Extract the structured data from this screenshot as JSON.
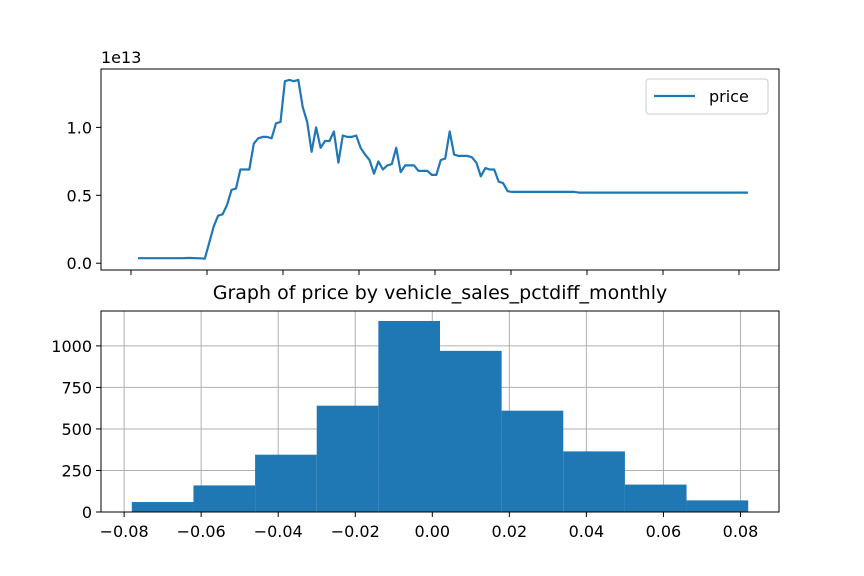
{
  "chart_data": [
    {
      "type": "line",
      "title": "",
      "xlabel": "",
      "ylabel": "",
      "scale_label": "1e13",
      "legend": {
        "entries": [
          "price"
        ],
        "placement": "upper right"
      },
      "x": [
        0,
        1,
        2,
        3,
        4,
        5,
        6,
        7,
        8,
        9,
        10,
        11,
        12,
        13,
        14,
        15,
        16,
        17,
        18,
        19,
        20,
        21,
        22,
        23,
        24,
        25,
        26,
        27,
        28,
        29,
        30,
        31,
        32,
        33,
        34,
        35,
        36,
        37,
        38,
        39,
        40,
        41,
        42,
        43,
        44,
        45,
        46,
        47,
        48,
        49,
        50,
        51,
        52,
        53,
        54,
        55,
        56,
        57,
        58,
        59,
        60,
        61,
        62,
        63,
        64,
        65,
        66,
        67,
        68,
        69,
        70,
        71,
        72,
        73,
        74,
        75,
        76,
        77,
        78,
        79,
        80,
        81,
        82,
        83,
        84,
        85,
        86,
        87,
        88,
        89,
        90,
        91,
        92,
        93,
        94,
        95,
        96,
        97,
        98,
        99,
        100,
        101,
        102,
        103,
        104,
        105,
        106,
        107,
        108,
        109,
        110,
        111,
        112,
        113,
        114,
        115,
        116,
        117,
        118,
        119,
        120,
        121,
        122,
        123,
        124,
        125,
        126,
        127,
        128,
        129,
        130,
        131,
        132,
        133,
        134,
        135,
        136,
        137
      ],
      "series": [
        {
          "name": "price",
          "color": "#1f77b4",
          "values": [
            0.37,
            0.37,
            0.37,
            0.37,
            0.37,
            0.37,
            0.37,
            0.37,
            0.37,
            0.37,
            0.37,
            0.38,
            0.38,
            0.37,
            0.36,
            0.33,
            1.5,
            2.7,
            3.5,
            3.6,
            4.3,
            5.4,
            5.5,
            6.9,
            6.9,
            6.9,
            8.8,
            9.2,
            9.3,
            9.3,
            9.2,
            10.3,
            10.4,
            13.4,
            13.5,
            13.4,
            13.5,
            11.5,
            10.4,
            8.2,
            10.0,
            8.5,
            9.0,
            9.0,
            9.7,
            7.4,
            9.4,
            9.3,
            9.3,
            9.4,
            8.5,
            8.0,
            7.6,
            6.6,
            7.5,
            6.9,
            7.2,
            7.3,
            8.5,
            6.7,
            7.2,
            7.2,
            7.2,
            6.8,
            6.8,
            6.8,
            6.5,
            6.5,
            7.6,
            7.7,
            9.7,
            8.0,
            7.9,
            7.9,
            7.9,
            7.8,
            7.4,
            6.4,
            7.0,
            6.9,
            6.9,
            6.0,
            5.9,
            5.3,
            5.25,
            5.25,
            5.25,
            5.25,
            5.25,
            5.25,
            5.25,
            5.25,
            5.25,
            5.25,
            5.25,
            5.25,
            5.25,
            5.25,
            5.25,
            5.2,
            5.2,
            5.2,
            5.2,
            5.2,
            5.2,
            5.2,
            5.2,
            5.2,
            5.2,
            5.2,
            5.2,
            5.2,
            5.2,
            5.2,
            5.2,
            5.2,
            5.2,
            5.2,
            5.2,
            5.2,
            5.2,
            5.2,
            5.2,
            5.2,
            5.2,
            5.2,
            5.2,
            5.2,
            5.2,
            5.2,
            5.2,
            5.2,
            5.2,
            5.2,
            5.2,
            5.2,
            5.2,
            5.2
          ]
        }
      ],
      "y_unit_note": "values in units of 1e12",
      "yticks": [
        "0.0",
        "0.5",
        "1.0"
      ],
      "ytick_values": [
        0,
        5,
        10
      ],
      "ylim": [
        -0.5,
        14.3
      ],
      "grid": false
    },
    {
      "type": "bar",
      "subtype": "histogram",
      "title": "Graph of price by vehicle_sales_pctdiff_monthly",
      "xlabel": "",
      "ylabel": "",
      "bin_edges": [
        -0.078,
        -0.062,
        -0.046,
        -0.03,
        -0.014,
        0.002,
        0.018,
        0.034,
        0.05,
        0.066,
        0.082
      ],
      "values": [
        60,
        160,
        345,
        640,
        1150,
        970,
        610,
        365,
        165,
        70
      ],
      "color": "#1f77b4",
      "xticks": [
        "−0.08",
        "−0.06",
        "−0.04",
        "−0.02",
        "0.00",
        "0.02",
        "0.04",
        "0.06",
        "0.08"
      ],
      "xtick_values": [
        -0.08,
        -0.06,
        -0.04,
        -0.02,
        0.0,
        0.02,
        0.04,
        0.06,
        0.08
      ],
      "yticks": [
        "0",
        "250",
        "500",
        "750",
        "1000"
      ],
      "ytick_values": [
        0,
        250,
        500,
        750,
        1000
      ],
      "xlim": [
        -0.086,
        0.09
      ],
      "ylim": [
        0,
        1210
      ],
      "grid": true
    }
  ]
}
